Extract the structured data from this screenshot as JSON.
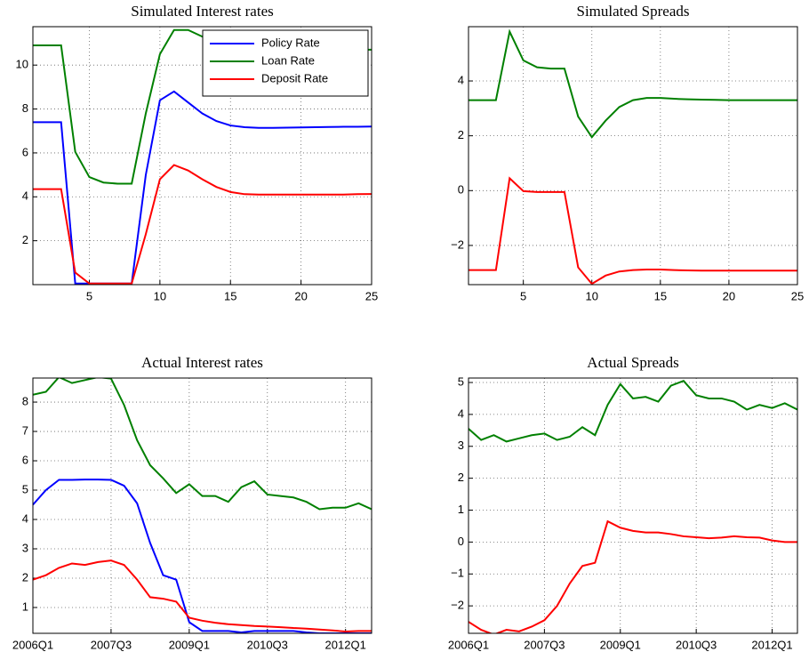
{
  "chart_data": [
    {
      "type": "line",
      "title": "Simulated Interest rates",
      "x": [
        1,
        2,
        3,
        4,
        5,
        6,
        7,
        8,
        9,
        10,
        11,
        12,
        13,
        14,
        15,
        16,
        17,
        18,
        19,
        20,
        21,
        22,
        23,
        24,
        25
      ],
      "xlim": [
        1,
        25
      ],
      "xticks": [
        5,
        10,
        15,
        20,
        25
      ],
      "ylim": [
        0,
        11.75
      ],
      "yticks": [
        2,
        4,
        6,
        8,
        10
      ],
      "grid": true,
      "legend": "upper right",
      "series": [
        {
          "name": "Policy Rate",
          "color": "#0000ff",
          "values": [
            7.4,
            7.4,
            7.4,
            0.05,
            0.05,
            0.05,
            0.05,
            0.05,
            5.0,
            8.4,
            8.8,
            8.3,
            7.8,
            7.45,
            7.25,
            7.17,
            7.14,
            7.14,
            7.15,
            7.16,
            7.17,
            7.18,
            7.19,
            7.19,
            7.2
          ]
        },
        {
          "name": "Loan Rate",
          "color": "#008000",
          "values": [
            10.9,
            10.9,
            10.9,
            6.05,
            4.9,
            4.65,
            4.6,
            4.6,
            7.8,
            10.5,
            11.6,
            11.6,
            11.3,
            11.0,
            10.85,
            10.75,
            10.72,
            10.7,
            10.7,
            10.7,
            10.7,
            10.7,
            10.7,
            10.7,
            10.7
          ]
        },
        {
          "name": "Deposit Rate",
          "color": "#ff0000",
          "values": [
            4.35,
            4.35,
            4.35,
            0.55,
            0.05,
            0.05,
            0.05,
            0.05,
            2.3,
            4.8,
            5.45,
            5.2,
            4.8,
            4.45,
            4.22,
            4.12,
            4.1,
            4.1,
            4.1,
            4.1,
            4.1,
            4.1,
            4.1,
            4.12,
            4.13
          ]
        }
      ]
    },
    {
      "type": "line",
      "title": "Simulated Spreads",
      "x": [
        1,
        2,
        3,
        4,
        5,
        6,
        7,
        8,
        9,
        10,
        11,
        12,
        13,
        14,
        15,
        16,
        17,
        18,
        19,
        20,
        21,
        22,
        23,
        24,
        25
      ],
      "xlim": [
        1,
        25
      ],
      "xticks": [
        5,
        10,
        15,
        20,
        25
      ],
      "ylim": [
        -3.43,
        5.98
      ],
      "yticks": [
        {
          "value": -2,
          "label": "−2"
        },
        0,
        2,
        4
      ],
      "grid": true,
      "series": [
        {
          "color": "#008000",
          "values": [
            3.3,
            3.3,
            3.3,
            5.8,
            4.75,
            4.5,
            4.45,
            4.45,
            2.7,
            1.95,
            2.55,
            3.05,
            3.3,
            3.38,
            3.38,
            3.35,
            3.33,
            3.32,
            3.31,
            3.3,
            3.3,
            3.3,
            3.3,
            3.3,
            3.3
          ]
        },
        {
          "color": "#ff0000",
          "values": [
            -2.9,
            -2.9,
            -2.9,
            0.45,
            -0.02,
            -0.05,
            -0.05,
            -0.05,
            -2.8,
            -3.4,
            -3.1,
            -2.95,
            -2.9,
            -2.88,
            -2.88,
            -2.9,
            -2.91,
            -2.92,
            -2.92,
            -2.92,
            -2.92,
            -2.92,
            -2.92,
            -2.92,
            -2.92
          ]
        }
      ]
    },
    {
      "type": "line",
      "title": "Actual Interest rates",
      "categories": [
        "2006Q1",
        null,
        null,
        null,
        null,
        null,
        "2007Q3",
        null,
        null,
        null,
        null,
        null,
        "2009Q1",
        null,
        null,
        null,
        null,
        null,
        "2010Q3",
        null,
        null,
        null,
        null,
        null,
        "2012Q1",
        null,
        null
      ],
      "ylim": [
        0.12,
        8.82
      ],
      "yticks": [
        1,
        2,
        3,
        4,
        5,
        6,
        7,
        8
      ],
      "grid": true,
      "series": [
        {
          "color": "#0000ff",
          "values": [
            4.5,
            5.0,
            5.35,
            5.35,
            5.36,
            5.36,
            5.35,
            5.15,
            4.55,
            3.2,
            2.1,
            1.95,
            0.5,
            0.2,
            0.2,
            0.2,
            0.15,
            0.2,
            0.2,
            0.2,
            0.2,
            0.15,
            0.12,
            0.12,
            0.12,
            0.12,
            0.12
          ]
        },
        {
          "color": "#008000",
          "values": [
            8.25,
            8.35,
            8.85,
            8.65,
            8.75,
            8.85,
            8.8,
            7.9,
            6.7,
            5.85,
            5.4,
            4.9,
            5.2,
            4.8,
            4.8,
            4.6,
            5.1,
            5.3,
            4.85,
            4.8,
            4.75,
            4.6,
            4.35,
            4.4,
            4.4,
            4.55,
            4.35
          ]
        },
        {
          "color": "#ff0000",
          "values": [
            1.95,
            2.1,
            2.35,
            2.5,
            2.45,
            2.55,
            2.6,
            2.45,
            1.95,
            1.35,
            1.3,
            1.2,
            0.65,
            0.55,
            0.48,
            0.43,
            0.4,
            0.37,
            0.35,
            0.33,
            0.3,
            0.28,
            0.25,
            0.22,
            0.18,
            0.2,
            0.2
          ]
        }
      ]
    },
    {
      "type": "line",
      "title": "Actual Spreads",
      "categories": [
        "2006Q1",
        null,
        null,
        null,
        null,
        null,
        "2007Q3",
        null,
        null,
        null,
        null,
        null,
        "2009Q1",
        null,
        null,
        null,
        null,
        null,
        "2010Q3",
        null,
        null,
        null,
        null,
        null,
        "2012Q1",
        null,
        null
      ],
      "ylim": [
        -2.86,
        5.14
      ],
      "yticks": [
        {
          "value": -2,
          "label": "−2"
        },
        {
          "value": -1,
          "label": "−1"
        },
        0,
        1,
        2,
        3,
        4,
        5
      ],
      "grid": true,
      "series": [
        {
          "color": "#008000",
          "values": [
            3.55,
            3.2,
            3.35,
            3.15,
            3.25,
            3.35,
            3.4,
            3.2,
            3.3,
            3.6,
            3.35,
            4.3,
            4.95,
            4.5,
            4.55,
            4.4,
            4.9,
            5.05,
            4.6,
            4.5,
            4.5,
            4.4,
            4.15,
            4.3,
            4.2,
            4.35,
            4.15
          ]
        },
        {
          "color": "#ff0000",
          "values": [
            -2.5,
            -2.75,
            -2.9,
            -2.75,
            -2.8,
            -2.65,
            -2.45,
            -2.0,
            -1.3,
            -0.75,
            -0.65,
            0.65,
            0.45,
            0.35,
            0.3,
            0.3,
            0.25,
            0.18,
            0.15,
            0.12,
            0.14,
            0.18,
            0.15,
            0.14,
            0.05,
            0.0,
            0.0
          ]
        }
      ]
    }
  ]
}
